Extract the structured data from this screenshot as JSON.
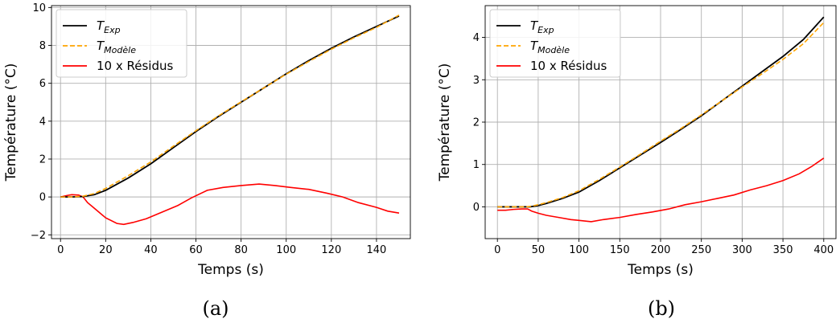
{
  "colors": {
    "exp": "#000000",
    "model": "#ffa500",
    "residus": "#ff0000",
    "grid": "#b0b0b0"
  },
  "chart_data": [
    {
      "type": "line",
      "caption": "(a)",
      "xlabel": "Temps (s)",
      "ylabel": "Température (°C)",
      "xlim": [
        -4,
        155
      ],
      "ylim": [
        -2.2,
        10.1
      ],
      "xticks": [
        0,
        20,
        40,
        60,
        80,
        100,
        120,
        140
      ],
      "yticks": [
        -2,
        0,
        2,
        4,
        6,
        8,
        10
      ],
      "grid": true,
      "legend_position": "top-left",
      "legend": [
        {
          "base": "T",
          "sub": "Exp",
          "style": "solid-black"
        },
        {
          "base": "T",
          "sub": "Modèle",
          "style": "dashed-orange"
        },
        {
          "base": "10 x Résidus",
          "sub": "",
          "style": "solid-red"
        }
      ],
      "series": [
        {
          "x": [
            0,
            5,
            10,
            15,
            20,
            30,
            40,
            50,
            60,
            70,
            80,
            90,
            100,
            110,
            120,
            130,
            140,
            150
          ],
          "values": [
            0,
            0,
            0.02,
            0.12,
            0.35,
            1.0,
            1.75,
            2.6,
            3.45,
            4.25,
            5.0,
            5.75,
            6.5,
            7.2,
            7.85,
            8.45,
            9.0,
            9.55
          ]
        },
        {
          "x": [
            0,
            5,
            10,
            15,
            20,
            30,
            40,
            50,
            60,
            70,
            80,
            90,
            100,
            110,
            120,
            130,
            140,
            150
          ],
          "values": [
            0,
            0,
            0.04,
            0.18,
            0.45,
            1.12,
            1.85,
            2.68,
            3.5,
            4.28,
            5.02,
            5.75,
            6.48,
            7.15,
            7.8,
            8.4,
            8.95,
            9.6
          ]
        },
        {
          "x": [
            0,
            3,
            5,
            8,
            10,
            12,
            15,
            20,
            25,
            28,
            32,
            38,
            45,
            52,
            58,
            65,
            72,
            80,
            88,
            95,
            102,
            110,
            118,
            125,
            132,
            140,
            145,
            150
          ],
          "values": [
            0,
            0.08,
            0.12,
            0.1,
            0.0,
            -0.3,
            -0.6,
            -1.1,
            -1.4,
            -1.45,
            -1.35,
            -1.15,
            -0.8,
            -0.45,
            -0.05,
            0.35,
            0.5,
            0.6,
            0.68,
            0.6,
            0.5,
            0.4,
            0.2,
            0.0,
            -0.3,
            -0.55,
            -0.75,
            -0.85
          ]
        }
      ]
    },
    {
      "type": "line",
      "caption": "(b)",
      "xlabel": "Temps (s)",
      "ylabel": "Température (°C)",
      "xlim": [
        -15,
        415
      ],
      "ylim": [
        -0.75,
        4.75
      ],
      "xticks": [
        0,
        50,
        100,
        150,
        200,
        250,
        300,
        350,
        400
      ],
      "yticks": [
        0,
        1,
        2,
        3,
        4
      ],
      "grid": true,
      "legend_position": "top-left",
      "legend": [
        {
          "base": "T",
          "sub": "Exp",
          "style": "solid-black"
        },
        {
          "base": "T",
          "sub": "Modèle",
          "style": "dashed-orange"
        },
        {
          "base": "10 x Résidus",
          "sub": "",
          "style": "solid-red"
        }
      ],
      "series": [
        {
          "x": [
            0,
            20,
            35,
            40,
            50,
            60,
            80,
            100,
            125,
            150,
            175,
            200,
            225,
            250,
            275,
            300,
            325,
            350,
            375,
            400
          ],
          "values": [
            0,
            0,
            0,
            0,
            0.03,
            0.08,
            0.2,
            0.35,
            0.62,
            0.92,
            1.22,
            1.52,
            1.83,
            2.15,
            2.5,
            2.85,
            3.2,
            3.55,
            3.95,
            4.48
          ]
        },
        {
          "x": [
            0,
            20,
            35,
            40,
            50,
            60,
            80,
            100,
            125,
            150,
            175,
            200,
            225,
            250,
            275,
            300,
            325,
            350,
            375,
            400
          ],
          "values": [
            0,
            0,
            0,
            0.01,
            0.05,
            0.1,
            0.22,
            0.38,
            0.65,
            0.94,
            1.24,
            1.55,
            1.85,
            2.17,
            2.5,
            2.83,
            3.15,
            3.48,
            3.85,
            4.35
          ]
        },
        {
          "x": [
            0,
            10,
            20,
            30,
            37,
            42,
            50,
            60,
            75,
            90,
            100,
            115,
            130,
            150,
            170,
            190,
            210,
            230,
            250,
            270,
            290,
            310,
            330,
            350,
            370,
            385,
            400
          ],
          "values": [
            -0.08,
            -0.08,
            -0.06,
            -0.05,
            -0.05,
            -0.1,
            -0.15,
            -0.2,
            -0.25,
            -0.3,
            -0.32,
            -0.35,
            -0.3,
            -0.25,
            -0.18,
            -0.12,
            -0.05,
            0.05,
            0.12,
            0.2,
            0.28,
            0.4,
            0.5,
            0.62,
            0.78,
            0.95,
            1.15
          ]
        }
      ]
    }
  ]
}
